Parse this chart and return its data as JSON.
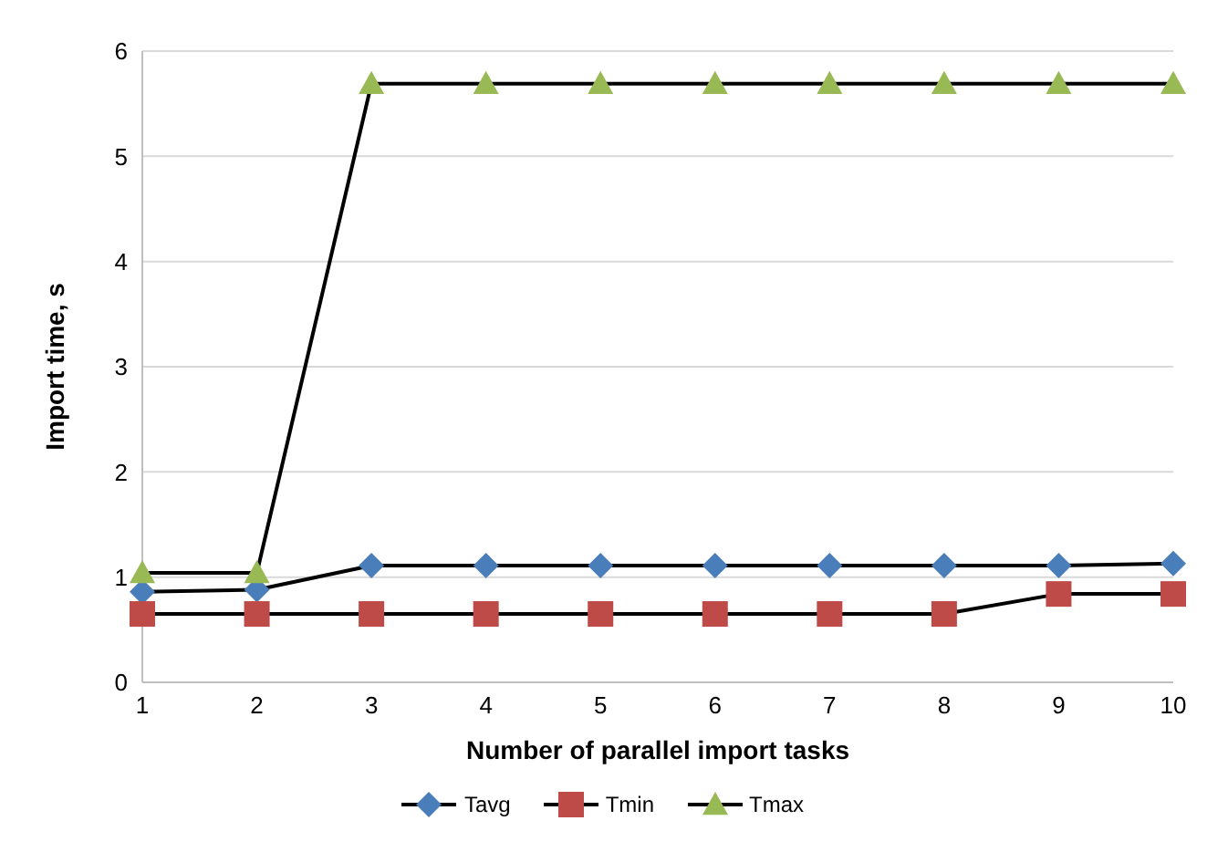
{
  "chart_data": {
    "type": "line",
    "xlabel": "Number of parallel import tasks",
    "ylabel": "Import time, s",
    "categories": [
      "1",
      "2",
      "3",
      "4",
      "5",
      "6",
      "7",
      "8",
      "9",
      "10"
    ],
    "series": [
      {
        "name": "Tavg",
        "color": "#4a7ebb",
        "marker": "diamond",
        "values": [
          0.86,
          0.88,
          1.11,
          1.11,
          1.11,
          1.11,
          1.11,
          1.11,
          1.11,
          1.13
        ]
      },
      {
        "name": "Tmin",
        "color": "#be4b48",
        "marker": "square",
        "values": [
          0.65,
          0.65,
          0.65,
          0.65,
          0.65,
          0.65,
          0.65,
          0.65,
          0.84,
          0.84
        ]
      },
      {
        "name": "Tmax",
        "color": "#98b954",
        "marker": "triangle",
        "values": [
          1.04,
          1.04,
          5.69,
          5.69,
          5.69,
          5.69,
          5.69,
          5.69,
          5.69,
          5.69
        ]
      }
    ],
    "ylim": [
      0,
      6
    ],
    "yticks": [
      0,
      1,
      2,
      3,
      4,
      5,
      6
    ],
    "grid": "y",
    "legend": "bottom",
    "line_style": "solid"
  }
}
